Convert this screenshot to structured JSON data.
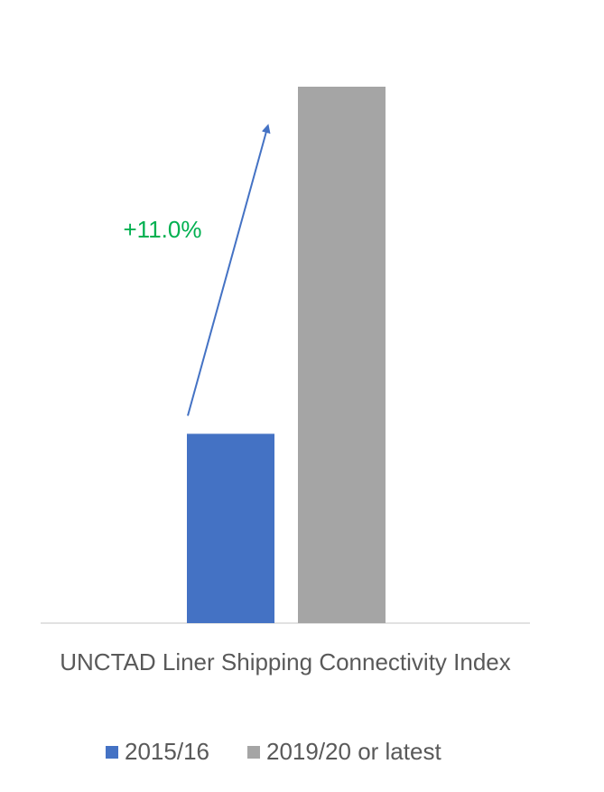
{
  "chart_data": {
    "type": "bar",
    "categories": [
      "UNCTAD Liner Shipping Connectivity Index"
    ],
    "series": [
      {
        "name": "2015/16",
        "color": "#4472c4",
        "values": [
          10.0
        ]
      },
      {
        "name": "2019/20 or latest",
        "color": "#a5a5a5",
        "values": [
          11.1
        ]
      }
    ],
    "ylim": [
      9.4,
      11.1
    ],
    "annotation": {
      "text": "+11.0%",
      "color": "#00b050"
    },
    "legend": "bottom"
  }
}
